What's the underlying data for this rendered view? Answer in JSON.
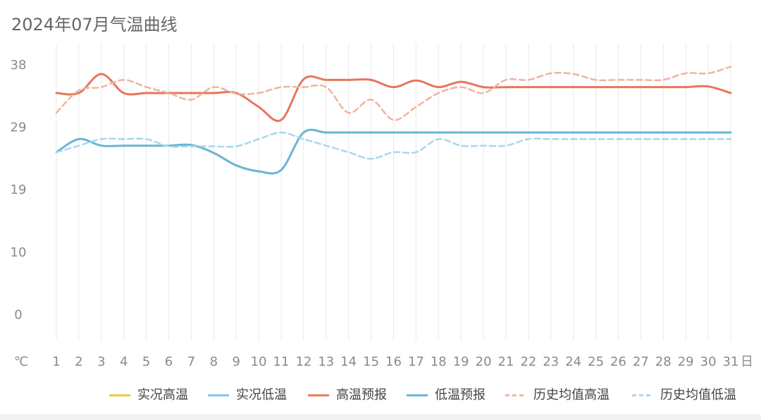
{
  "chart_data": {
    "type": "line",
    "title": "2024年07月气温曲线",
    "y_unit": "℃",
    "x_unit": "日",
    "categories": [
      "1",
      "2",
      "3",
      "4",
      "5",
      "6",
      "7",
      "8",
      "9",
      "10",
      "11",
      "12",
      "13",
      "14",
      "15",
      "16",
      "17",
      "18",
      "19",
      "20",
      "21",
      "22",
      "23",
      "24",
      "25",
      "26",
      "27",
      "28",
      "29",
      "30",
      "31"
    ],
    "ylim": [
      -3.8,
      41.3
    ],
    "yticks": [
      0,
      {
        "value": 9.5,
        "label": "10"
      },
      19,
      {
        "value": 28.5,
        "label": "29"
      },
      38
    ],
    "grid": "x",
    "legend": "bottom",
    "series": [
      {
        "name": "实况高温",
        "color": "#f2c53d",
        "dash": false,
        "values": [
          null,
          null,
          null,
          null,
          null,
          null,
          null,
          null,
          null,
          null,
          null,
          null,
          null,
          null,
          null,
          null,
          null,
          null,
          null,
          null,
          null,
          null,
          null,
          null,
          null,
          null,
          null,
          null,
          null,
          null,
          null
        ]
      },
      {
        "name": "实况低温",
        "color": "#7ec6e0",
        "dash": false,
        "values": [
          null,
          null,
          null,
          null,
          null,
          null,
          null,
          null,
          null,
          null,
          null,
          null,
          null,
          null,
          null,
          null,
          null,
          null,
          null,
          null,
          null,
          null,
          null,
          null,
          null,
          null,
          null,
          null,
          null,
          null,
          null
        ]
      },
      {
        "name": "高温预报",
        "color": "#e8765a",
        "dash": false,
        "values": [
          33.8,
          33.8,
          36.7,
          33.8,
          33.8,
          33.8,
          33.8,
          33.8,
          33.8,
          31.7,
          29.7,
          35.9,
          35.8,
          35.8,
          35.8,
          34.7,
          35.7,
          34.7,
          35.5,
          34.7,
          34.7,
          34.7,
          34.7,
          34.7,
          34.7,
          34.7,
          34.7,
          34.7,
          34.7,
          34.8,
          33.8
        ]
      },
      {
        "name": "低温预报",
        "color": "#6ab4d4",
        "dash": false,
        "values": [
          24.8,
          26.8,
          25.8,
          25.8,
          25.8,
          25.8,
          25.9,
          24.7,
          22.8,
          21.9,
          22.1,
          27.8,
          27.8,
          27.8,
          27.8,
          27.8,
          27.8,
          27.8,
          27.8,
          27.8,
          27.8,
          27.8,
          27.8,
          27.8,
          27.8,
          27.8,
          27.8,
          27.8,
          27.8,
          27.8,
          27.8
        ]
      },
      {
        "name": "历史均值高温",
        "color": "#f0b49e",
        "dash": true,
        "values": [
          30.8,
          34.2,
          34.7,
          35.8,
          34.7,
          33.8,
          32.8,
          34.7,
          33.7,
          33.8,
          34.7,
          34.7,
          34.7,
          30.8,
          32.8,
          29.7,
          31.7,
          33.8,
          34.7,
          33.8,
          35.8,
          35.8,
          36.8,
          36.7,
          35.8,
          35.8,
          35.8,
          35.8,
          36.8,
          36.8,
          37.8
        ]
      },
      {
        "name": "历史均值低温",
        "color": "#a8d8ec",
        "dash": true,
        "values": [
          24.8,
          25.8,
          26.8,
          26.8,
          26.8,
          25.7,
          25.7,
          25.7,
          25.7,
          26.8,
          27.8,
          26.8,
          25.8,
          24.8,
          23.8,
          24.8,
          24.8,
          26.8,
          25.8,
          25.8,
          25.8,
          26.8,
          26.8,
          26.8,
          26.8,
          26.8,
          26.8,
          26.8,
          26.8,
          26.8,
          26.8
        ]
      }
    ]
  }
}
